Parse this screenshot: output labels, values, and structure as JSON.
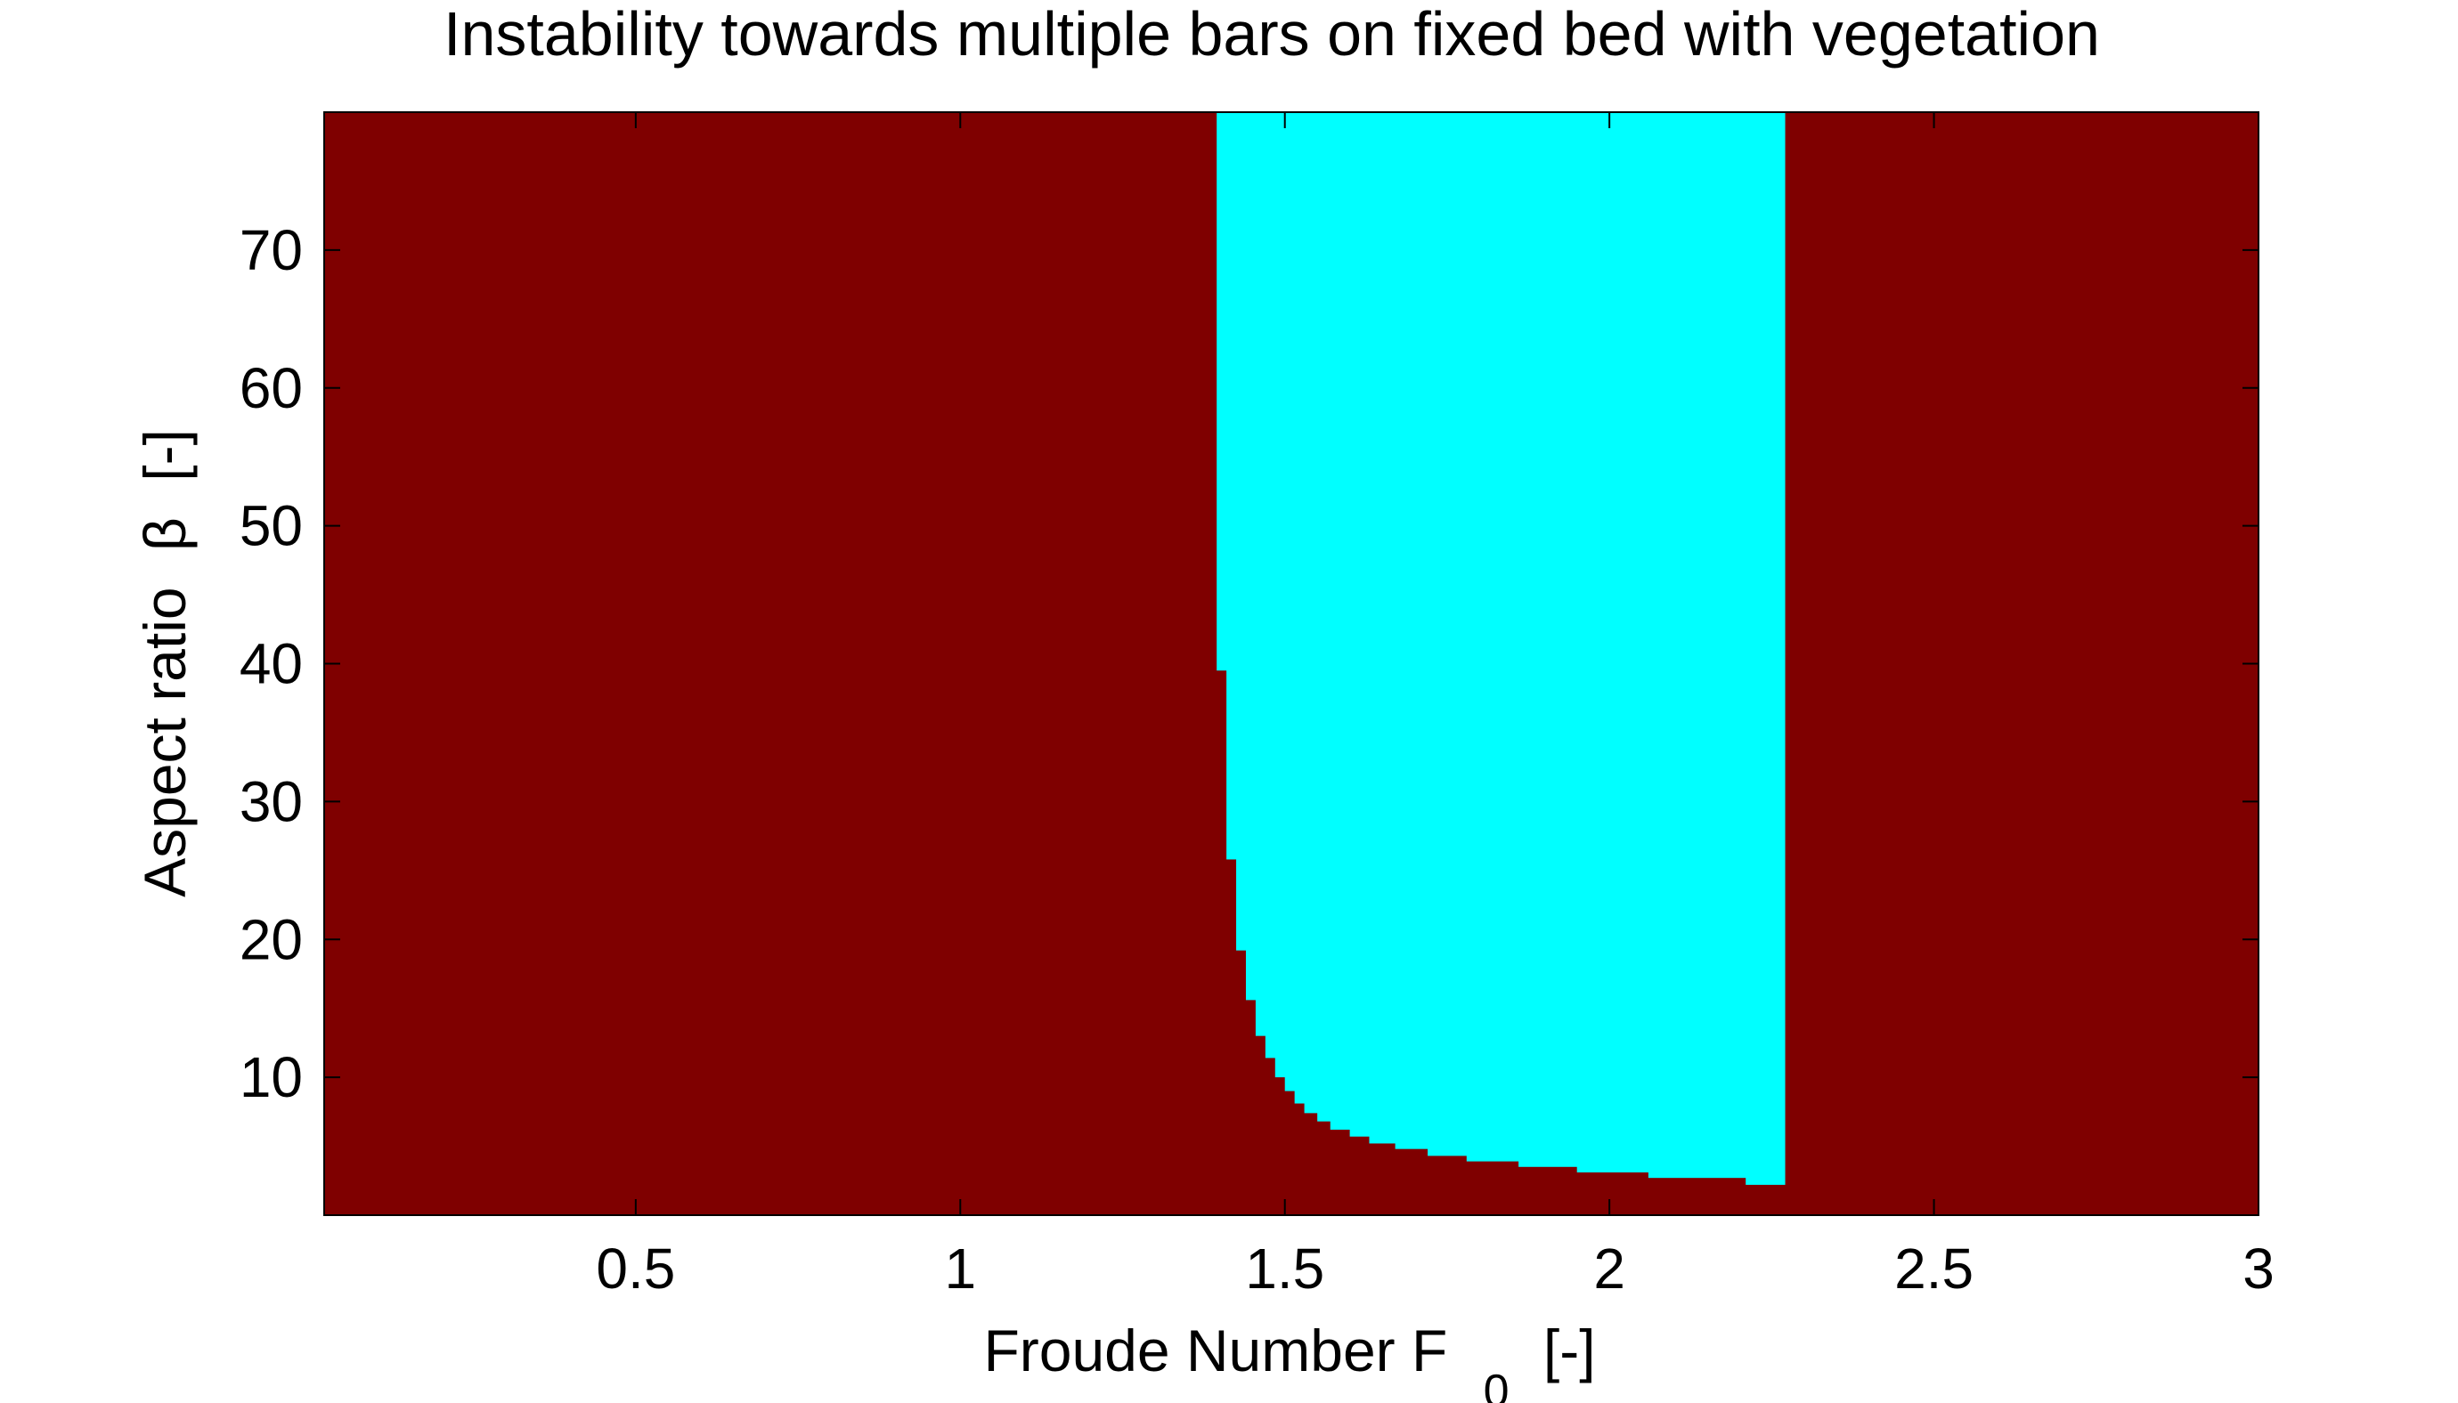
{
  "chart_data": {
    "type": "heatmap",
    "title": "Instability towards multiple bars on fixed bed with vegetation",
    "xlabel": "Froude Number F",
    "xlabel_subscript": "0",
    "xlabel_unit": "[-]",
    "ylabel": "Aspect ratio",
    "ylabel_symbol": "β",
    "ylabel_unit": "[-]",
    "xlim": [
      0.02,
      3.0
    ],
    "ylim": [
      0,
      80
    ],
    "x_ticks": [
      0.5,
      1,
      1.5,
      2,
      2.5,
      3
    ],
    "x_tick_labels": [
      "0.5",
      "1",
      "1.5",
      "2",
      "2.5",
      "3"
    ],
    "y_ticks": [
      10,
      20,
      30,
      40,
      50,
      60,
      70
    ],
    "y_tick_labels": [
      "10",
      "20",
      "30",
      "40",
      "50",
      "60",
      "70"
    ],
    "grid": false,
    "colors": {
      "stable": "#7f0000",
      "unstable": "#00ffff"
    },
    "unstable_region_x_end": 2.27,
    "unstable_boundary": [
      {
        "x0": 1.395,
        "x1": 1.41,
        "y_min": 39.5
      },
      {
        "x0": 1.41,
        "x1": 1.425,
        "y_min": 25.8
      },
      {
        "x0": 1.425,
        "x1": 1.44,
        "y_min": 19.2
      },
      {
        "x0": 1.44,
        "x1": 1.455,
        "y_min": 15.6
      },
      {
        "x0": 1.455,
        "x1": 1.47,
        "y_min": 13.0
      },
      {
        "x0": 1.47,
        "x1": 1.485,
        "y_min": 11.4
      },
      {
        "x0": 1.485,
        "x1": 1.5,
        "y_min": 10.0
      },
      {
        "x0": 1.5,
        "x1": 1.515,
        "y_min": 9.0
      },
      {
        "x0": 1.515,
        "x1": 1.53,
        "y_min": 8.1
      },
      {
        "x0": 1.53,
        "x1": 1.55,
        "y_min": 7.4
      },
      {
        "x0": 1.55,
        "x1": 1.57,
        "y_min": 6.8
      },
      {
        "x0": 1.57,
        "x1": 1.6,
        "y_min": 6.2
      },
      {
        "x0": 1.6,
        "x1": 1.63,
        "y_min": 5.7
      },
      {
        "x0": 1.63,
        "x1": 1.67,
        "y_min": 5.2
      },
      {
        "x0": 1.67,
        "x1": 1.72,
        "y_min": 4.8
      },
      {
        "x0": 1.72,
        "x1": 1.78,
        "y_min": 4.3
      },
      {
        "x0": 1.78,
        "x1": 1.86,
        "y_min": 3.9
      },
      {
        "x0": 1.86,
        "x1": 1.95,
        "y_min": 3.5
      },
      {
        "x0": 1.95,
        "x1": 2.06,
        "y_min": 3.1
      },
      {
        "x0": 2.06,
        "x1": 2.21,
        "y_min": 2.7
      },
      {
        "x0": 2.21,
        "x1": 2.27,
        "y_min": 2.2
      }
    ]
  }
}
